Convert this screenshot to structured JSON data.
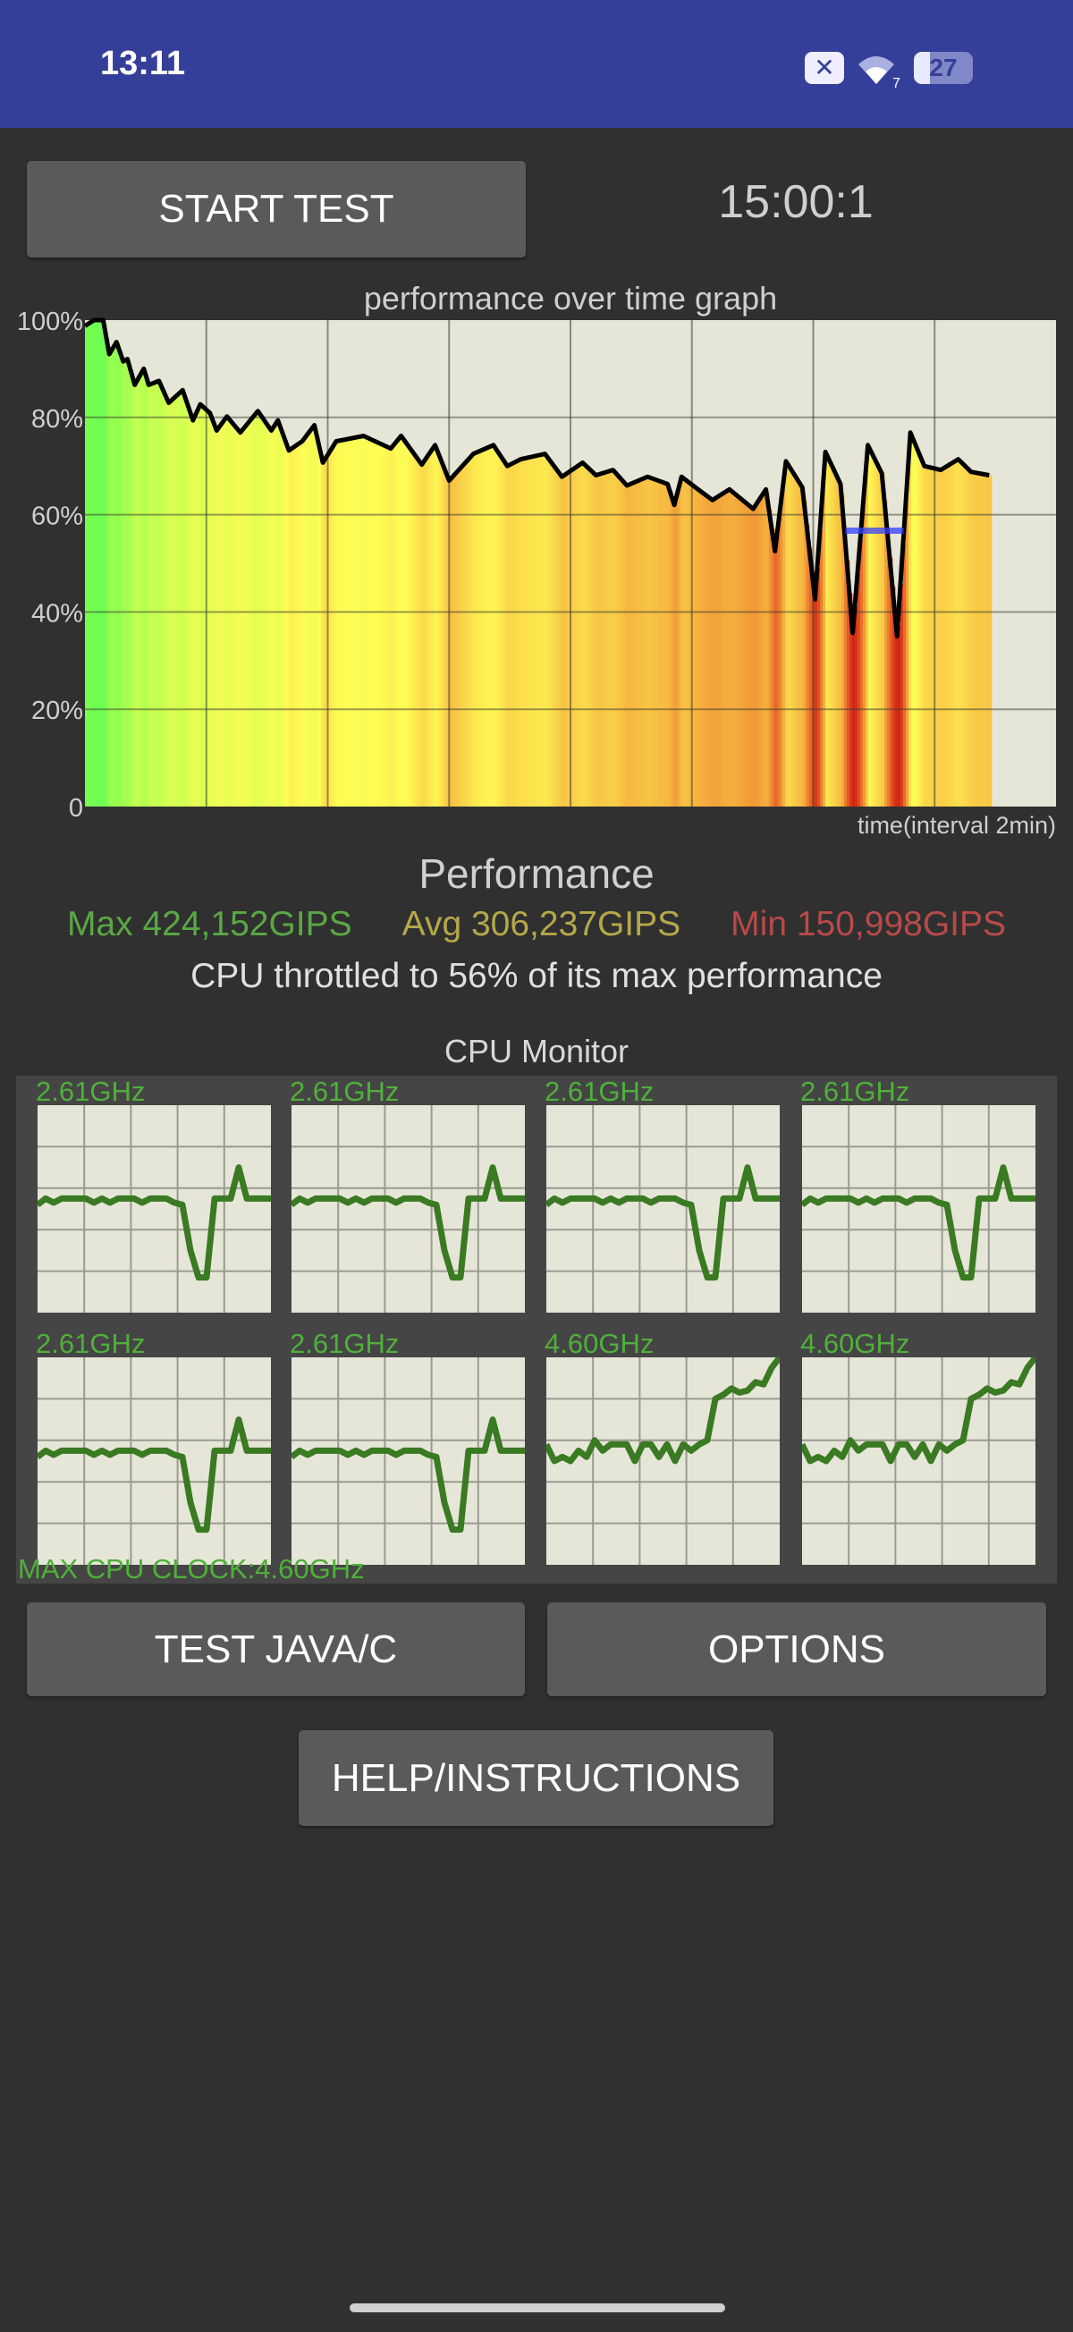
{
  "status_bar": {
    "time": "13:11",
    "icons": [
      "notification-x-icon",
      "wifi-7-icon",
      "battery-icon"
    ],
    "notification_glyph": "✕",
    "wifi_badge": "7",
    "battery_level": "27",
    "color": "#343f99"
  },
  "controls": {
    "start_label": "START TEST",
    "timer": "15:00:1"
  },
  "chart_data": {
    "type": "area",
    "title": "performance over time graph",
    "xlabel": "time(interval 2min)",
    "ylabel": "",
    "xlim": [
      0,
      16
    ],
    "ylim": [
      0,
      100
    ],
    "x_grid_interval": 2,
    "y_ticks": [
      "0",
      "20%",
      "40%",
      "60%",
      "80%",
      "100%"
    ],
    "grid": true,
    "x": [
      0,
      0.15,
      0.3,
      0.4,
      0.52,
      0.63,
      0.7,
      0.82,
      0.97,
      1.05,
      1.22,
      1.38,
      1.61,
      1.78,
      1.9,
      2.06,
      2.17,
      2.34,
      2.56,
      2.85,
      3.07,
      3.18,
      3.36,
      3.58,
      3.78,
      3.92,
      4.14,
      4.59,
      5.04,
      5.21,
      5.55,
      5.77,
      6.0,
      6.4,
      6.73,
      6.96,
      7.18,
      7.58,
      7.86,
      8.2,
      8.42,
      8.7,
      8.93,
      9.27,
      9.6,
      9.71,
      9.83,
      10.06,
      10.34,
      10.62,
      11.01,
      11.22,
      11.37,
      11.55,
      11.82,
      12.03,
      12.2,
      12.45,
      12.65,
      12.9,
      13.13,
      13.38,
      13.6,
      13.83,
      14.1,
      14.39,
      14.6,
      14.9
    ],
    "y": [
      98.8,
      100,
      100,
      93,
      95.5,
      91.5,
      92,
      86.7,
      90,
      86.7,
      87.5,
      83,
      85.6,
      79.4,
      82.7,
      80.9,
      77.3,
      80.2,
      76.9,
      81.3,
      77.3,
      79.4,
      73.2,
      75.1,
      78.4,
      70.7,
      75.1,
      76.2,
      73.6,
      76.2,
      70.3,
      74.3,
      67,
      72.5,
      74.3,
      70,
      71.4,
      72.5,
      67.8,
      70.7,
      68.1,
      69.2,
      66,
      67.8,
      66.3,
      62,
      67.8,
      65.6,
      63,
      65.2,
      61.2,
      65.2,
      52.5,
      71,
      65.6,
      42.6,
      72.9,
      66.3,
      35.7,
      74.3,
      68.5,
      35,
      76.9,
      70,
      69.2,
      71.4,
      68.8,
      68.1
    ],
    "marker": {
      "x": [
        12.53,
        13.49
      ],
      "y": 56.7,
      "color": "#3340ff"
    },
    "line_color": "#000000",
    "background": "#e6e6d8"
  },
  "performance": {
    "title": "Performance",
    "max": "Max 424,152GIPS",
    "avg": "Avg 306,237GIPS",
    "min": "Min 150,998GIPS",
    "max_color": "#5aa845",
    "avg_color": "#b5a84a",
    "min_color": "#b84a4a",
    "throttle_text": "CPU throttled to 56% of its max performance"
  },
  "cpu_monitor": {
    "title": "CPU Monitor",
    "max_clock": "MAX CPU CLOCK:4.60GHz",
    "line_color": "#3a7a22",
    "cores": [
      {
        "label": "2.61GHz",
        "values": [
          52,
          55,
          53,
          55,
          55,
          55,
          55,
          53,
          55,
          53,
          55,
          55,
          55,
          53,
          55,
          55,
          55,
          53,
          52,
          30,
          17,
          17,
          55,
          55,
          55,
          70,
          55,
          55,
          55,
          55
        ]
      },
      {
        "label": "2.61GHz",
        "values": [
          52,
          55,
          53,
          55,
          55,
          55,
          55,
          53,
          55,
          53,
          55,
          55,
          55,
          53,
          55,
          55,
          55,
          53,
          52,
          30,
          17,
          17,
          55,
          55,
          55,
          70,
          55,
          55,
          55,
          55
        ]
      },
      {
        "label": "2.61GHz",
        "values": [
          52,
          55,
          53,
          55,
          55,
          55,
          55,
          53,
          55,
          53,
          55,
          55,
          55,
          53,
          55,
          55,
          55,
          53,
          52,
          30,
          17,
          17,
          55,
          55,
          55,
          70,
          55,
          55,
          55,
          55
        ]
      },
      {
        "label": "2.61GHz",
        "values": [
          52,
          55,
          53,
          55,
          55,
          55,
          55,
          53,
          55,
          53,
          55,
          55,
          55,
          53,
          55,
          55,
          55,
          53,
          52,
          30,
          17,
          17,
          55,
          55,
          55,
          70,
          55,
          55,
          55,
          55
        ]
      },
      {
        "label": "2.61GHz",
        "values": [
          52,
          55,
          53,
          55,
          55,
          55,
          55,
          53,
          55,
          53,
          55,
          55,
          55,
          53,
          55,
          55,
          55,
          53,
          52,
          30,
          17,
          17,
          55,
          55,
          55,
          70,
          55,
          55,
          55,
          55
        ]
      },
      {
        "label": "2.61GHz",
        "values": [
          52,
          55,
          53,
          55,
          55,
          55,
          55,
          53,
          55,
          53,
          55,
          55,
          55,
          53,
          55,
          55,
          55,
          53,
          52,
          30,
          17,
          17,
          55,
          55,
          55,
          70,
          55,
          55,
          55,
          55
        ]
      },
      {
        "label": "4.60GHz",
        "values": [
          58,
          50,
          52,
          50,
          55,
          52,
          60,
          55,
          58,
          58,
          58,
          50,
          58,
          58,
          52,
          58,
          50,
          58,
          55,
          58,
          60,
          80,
          82,
          85,
          83,
          84,
          88,
          87,
          95,
          100
        ]
      },
      {
        "label": "4.60GHz",
        "values": [
          58,
          50,
          52,
          50,
          55,
          52,
          60,
          55,
          58,
          58,
          58,
          50,
          58,
          58,
          52,
          58,
          50,
          58,
          55,
          58,
          60,
          80,
          82,
          85,
          83,
          84,
          88,
          87,
          95,
          100
        ]
      }
    ]
  },
  "buttons": {
    "test_java_c": "TEST JAVA/C",
    "options": "OPTIONS",
    "help": "HELP/INSTRUCTIONS"
  }
}
